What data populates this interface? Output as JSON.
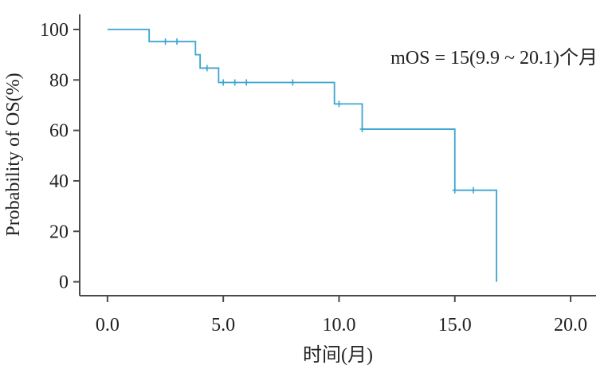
{
  "chart_data": {
    "type": "line",
    "xlabel": "时间(月)",
    "ylabel": "Probability of OS(%)",
    "xlim": [
      -1.2,
      21.1
    ],
    "ylim": [
      -5.5,
      106
    ],
    "x_ticks": [
      0,
      5,
      10,
      15,
      20
    ],
    "x_tick_labels": [
      "0.0",
      "5.0",
      "10.0",
      "15.0",
      "20.0"
    ],
    "y_ticks": [
      0,
      20,
      40,
      60,
      80,
      100
    ],
    "y_tick_labels": [
      "0",
      "20",
      "40",
      "60",
      "80",
      "100"
    ],
    "annotation": "mOS = 15(9.9 ~ 20.1)个月",
    "series_color": "#3da5d0",
    "axis_color": "#4a4a4a",
    "series": [
      {
        "steps": [
          {
            "x": 0.0,
            "y": 100
          },
          {
            "x": 1.8,
            "y": 95.2
          },
          {
            "x": 3.8,
            "y": 90.0
          },
          {
            "x": 4.0,
            "y": 84.7
          },
          {
            "x": 4.8,
            "y": 79.0
          },
          {
            "x": 9.8,
            "y": 70.5
          },
          {
            "x": 11.0,
            "y": 60.5
          },
          {
            "x": 15.0,
            "y": 36.3
          },
          {
            "x": 16.8,
            "y": 0.0
          }
        ],
        "censored": [
          {
            "x": 2.5,
            "y": 95.2
          },
          {
            "x": 3.0,
            "y": 95.2
          },
          {
            "x": 4.3,
            "y": 84.7
          },
          {
            "x": 5.0,
            "y": 79.0
          },
          {
            "x": 5.5,
            "y": 79.0
          },
          {
            "x": 6.0,
            "y": 79.0
          },
          {
            "x": 8.0,
            "y": 79.0
          },
          {
            "x": 10.0,
            "y": 70.5
          },
          {
            "x": 11.0,
            "y": 60.5
          },
          {
            "x": 15.0,
            "y": 36.3
          },
          {
            "x": 15.8,
            "y": 36.3
          }
        ]
      }
    ]
  }
}
